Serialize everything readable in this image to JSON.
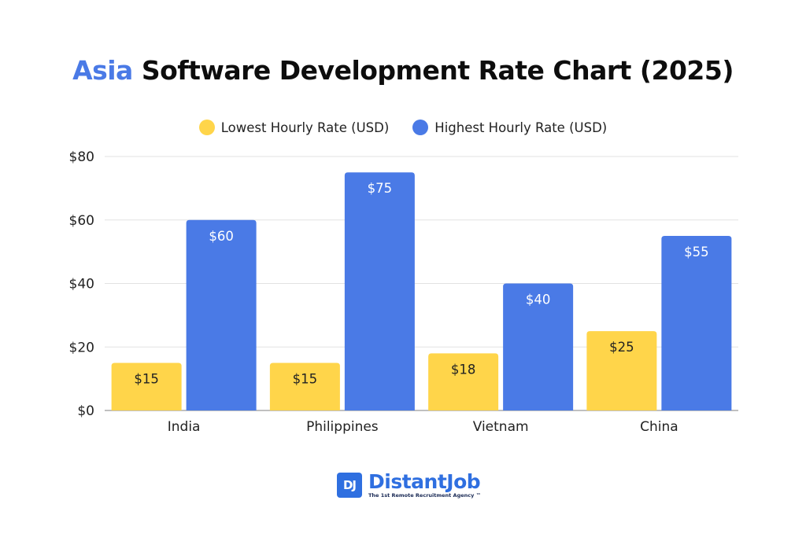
{
  "title": {
    "accent": "Asia",
    "rest": " Software Development Rate Chart (2025)"
  },
  "logo": {
    "badge": "DJ",
    "name": "DistantJob",
    "tagline": "The 1st Remote Recruitment Agency ™"
  },
  "chart_data": {
    "type": "bar",
    "categories": [
      "India",
      "Philippines",
      "Vietnam",
      "China"
    ],
    "series": [
      {
        "name": "Lowest Hourly Rate (USD)",
        "color": "#ffd54a",
        "values": [
          15,
          15,
          18,
          25
        ],
        "labels": [
          "$15",
          "$15",
          "$18",
          "$25"
        ]
      },
      {
        "name": "Highest Hourly Rate (USD)",
        "color": "#4a7ae6",
        "values": [
          60,
          75,
          40,
          55
        ],
        "labels": [
          "$60",
          "$75",
          "$40",
          "$55"
        ]
      }
    ],
    "ylim": [
      0,
      80
    ],
    "yticks": [
      0,
      20,
      40,
      60,
      80
    ],
    "ytick_labels": [
      "$0",
      "$20",
      "$40",
      "$60",
      "$80"
    ],
    "grid": true,
    "legend": "top-center"
  }
}
